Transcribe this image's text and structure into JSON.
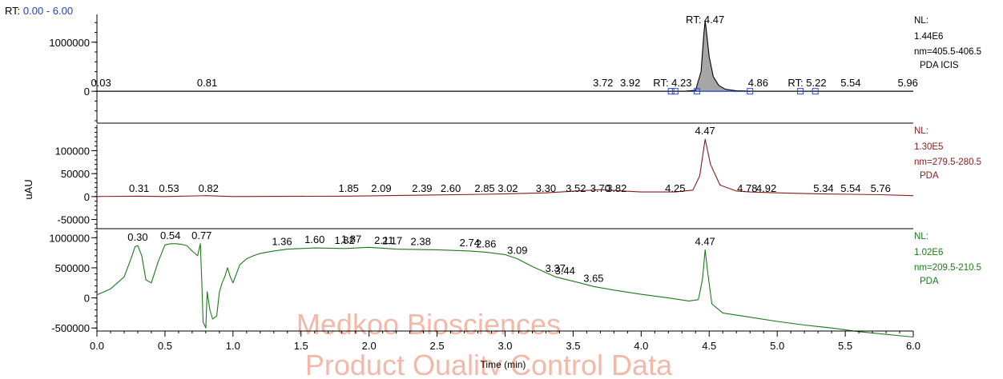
{
  "header": {
    "rt_prefix": "RT:",
    "rt_range": "0.00 - 6.00"
  },
  "watermark": {
    "line1": "Medkoo Biosciences",
    "line2": "Product Quality Control Data",
    "color": "#f4b8a8"
  },
  "chart_data": {
    "type": "line",
    "xlabel": "Time (min)",
    "ylabel": "uAU",
    "xlim": [
      0.0,
      6.0
    ],
    "x_ticks": [
      "0.0",
      "0.5",
      "1.0",
      "1.5",
      "2.0",
      "2.5",
      "3.0",
      "3.5",
      "4.0",
      "4.5",
      "5.0",
      "5.5",
      "6.0"
    ],
    "panels": [
      {
        "color": "#000000",
        "ylim": [
          -650000,
          1600000
        ],
        "y_ticks": [
          {
            "v": 1000000,
            "label": "1000000"
          },
          {
            "v": 0,
            "label": "0"
          }
        ],
        "info": [
          "NL:",
          "1.44E6",
          "nm=405.5-406.5",
          "PDA ICIS"
        ],
        "info_color": "#000000",
        "peak_area_fill": "#a6a6a6",
        "series": [
          {
            "x": [
              0.0,
              4.32,
              4.4,
              4.44,
              4.46,
              4.47,
              4.48,
              4.5,
              4.53,
              4.57,
              4.62,
              4.7,
              4.8,
              6.0
            ],
            "y": [
              0,
              0,
              20000,
              400000,
              1150000,
              1440000,
              1200000,
              700000,
              300000,
              120000,
              40000,
              10000,
              0,
              0
            ]
          }
        ],
        "peak_labels": [
          {
            "x": 0.03,
            "y": 0,
            "text": "0.03"
          },
          {
            "x": 0.81,
            "y": 0,
            "text": "0.81"
          },
          {
            "x": 3.72,
            "y": 0,
            "text": "3.72"
          },
          {
            "x": 3.92,
            "y": 0,
            "text": "3.92"
          },
          {
            "x": 4.23,
            "y": 0,
            "text": "RT: 4.23"
          },
          {
            "x": 4.47,
            "y": 1440000,
            "text": "RT: 4.47"
          },
          {
            "x": 4.86,
            "y": 0,
            "text": "4.86"
          },
          {
            "x": 5.22,
            "y": 0,
            "text": "RT: 5.22"
          },
          {
            "x": 5.54,
            "y": 0,
            "text": "5.54"
          },
          {
            "x": 5.96,
            "y": 0,
            "text": "5.96"
          }
        ],
        "integration_markers": [
          4.22,
          4.25,
          4.41,
          4.8,
          5.17,
          5.28
        ]
      },
      {
        "color": "#8b1a1a",
        "ylim": [
          -70000,
          160000
        ],
        "y_ticks": [
          {
            "v": 100000,
            "label": "100000"
          },
          {
            "v": 50000,
            "label": "50000"
          },
          {
            "v": 0,
            "label": "0"
          },
          {
            "v": -50000,
            "label": "-50000"
          }
        ],
        "info": [
          "NL:",
          "1.30E5",
          "nm=279.5-280.5",
          "PDA"
        ],
        "info_color": "#8b1a1a",
        "series": [
          {
            "x": [
              0.0,
              0.3,
              0.5,
              0.8,
              1.0,
              1.85,
              2.39,
              2.85,
              3.3,
              3.52,
              3.7,
              3.82,
              4.0,
              4.25,
              4.38,
              4.43,
              4.47,
              4.51,
              4.58,
              4.7,
              4.8,
              5.0,
              5.3,
              5.54,
              5.76,
              6.0
            ],
            "y": [
              0,
              1000,
              0,
              2000,
              0,
              1000,
              3000,
              5000,
              8000,
              12000,
              15000,
              13000,
              10000,
              10000,
              14000,
              45000,
              125000,
              70000,
              25000,
              12000,
              10000,
              8000,
              6000,
              5000,
              4000,
              2000
            ]
          }
        ],
        "peak_labels": [
          {
            "x": 0.31,
            "y": 0,
            "text": "0.31"
          },
          {
            "x": 0.53,
            "y": 0,
            "text": "0.53"
          },
          {
            "x": 0.82,
            "y": 0,
            "text": "0.82"
          },
          {
            "x": 1.85,
            "y": 0,
            "text": "1.85"
          },
          {
            "x": 2.09,
            "y": 0,
            "text": "2.09"
          },
          {
            "x": 2.39,
            "y": 0,
            "text": "2.39"
          },
          {
            "x": 2.6,
            "y": 0,
            "text": "2.60"
          },
          {
            "x": 2.85,
            "y": 0,
            "text": "2.85"
          },
          {
            "x": 3.02,
            "y": 0,
            "text": "3.02"
          },
          {
            "x": 3.3,
            "y": 0,
            "text": "3.30"
          },
          {
            "x": 3.52,
            "y": 0,
            "text": "3.52"
          },
          {
            "x": 3.7,
            "y": 0,
            "text": "3.70"
          },
          {
            "x": 3.82,
            "y": 0,
            "text": "3.82"
          },
          {
            "x": 4.25,
            "y": 0,
            "text": "4.25"
          },
          {
            "x": 4.47,
            "y": 125000,
            "text": "4.47"
          },
          {
            "x": 4.78,
            "y": 0,
            "text": "4.78"
          },
          {
            "x": 4.92,
            "y": 0,
            "text": "4.92"
          },
          {
            "x": 5.34,
            "y": 0,
            "text": "5.34"
          },
          {
            "x": 5.54,
            "y": 0,
            "text": "5.54"
          },
          {
            "x": 5.76,
            "y": 0,
            "text": "5.76"
          }
        ]
      },
      {
        "color": "#1a7a1a",
        "ylim": [
          -550000,
          1150000
        ],
        "y_ticks": [
          {
            "v": 1000000,
            "label": "1000000"
          },
          {
            "v": 500000,
            "label": "500000"
          },
          {
            "v": 0,
            "label": "0"
          },
          {
            "v": -500000,
            "label": "-500000"
          }
        ],
        "info": [
          "NL:",
          "1.02E6",
          "nm=209.5-210.5",
          "PDA"
        ],
        "info_color": "#1a7a1a",
        "series": [
          {
            "x": [
              0.0,
              0.05,
              0.1,
              0.15,
              0.2,
              0.25,
              0.28,
              0.3,
              0.33,
              0.36,
              0.4,
              0.45,
              0.5,
              0.52,
              0.54,
              0.58,
              0.62,
              0.66,
              0.7,
              0.74,
              0.76,
              0.77,
              0.78,
              0.8,
              0.81,
              0.83,
              0.85,
              0.88,
              0.9,
              0.92,
              0.94,
              0.96,
              0.98,
              1.0,
              1.05,
              1.1,
              1.15,
              1.2,
              1.3,
              1.4,
              1.6,
              1.82,
              2.0,
              2.2,
              2.5,
              2.74,
              2.86,
              3.0,
              3.09,
              3.2,
              3.37,
              3.44,
              3.55,
              3.65,
              3.8,
              4.0,
              4.2,
              4.35,
              4.42,
              4.45,
              4.47,
              4.49,
              4.52,
              4.6,
              4.8,
              5.0,
              5.2,
              5.4,
              5.6,
              6.0
            ],
            "y": [
              50000,
              100000,
              150000,
              250000,
              350000,
              650000,
              850000,
              870000,
              700000,
              300000,
              250000,
              600000,
              880000,
              890000,
              900000,
              900000,
              890000,
              870000,
              780000,
              700000,
              900000,
              300000,
              -400000,
              -500000,
              100000,
              -200000,
              -350000,
              -300000,
              100000,
              250000,
              350000,
              500000,
              350000,
              250000,
              550000,
              650000,
              700000,
              740000,
              780000,
              810000,
              830000,
              820000,
              840000,
              810000,
              800000,
              780000,
              760000,
              720000,
              650000,
              520000,
              350000,
              310000,
              250000,
              190000,
              130000,
              60000,
              0,
              -50000,
              -30000,
              300000,
              800000,
              400000,
              -100000,
              -250000,
              -320000,
              -390000,
              -450000,
              -500000,
              -560000,
              -650000
            ]
          }
        ],
        "peak_labels": [
          {
            "x": 0.3,
            "y": 870000,
            "text": "0.30"
          },
          {
            "x": 0.54,
            "y": 900000,
            "text": "0.54"
          },
          {
            "x": 0.77,
            "y": 900000,
            "text": "0.77"
          },
          {
            "x": 1.36,
            "y": 800000,
            "text": "1.36"
          },
          {
            "x": 1.6,
            "y": 830000,
            "text": "1.60"
          },
          {
            "x": 1.82,
            "y": 820000,
            "text": "1.82"
          },
          {
            "x": 1.87,
            "y": 840000,
            "text": "1.87"
          },
          {
            "x": 2.11,
            "y": 820000,
            "text": "2.11"
          },
          {
            "x": 2.17,
            "y": 810000,
            "text": "2.17"
          },
          {
            "x": 2.38,
            "y": 800000,
            "text": "2.38"
          },
          {
            "x": 2.74,
            "y": 780000,
            "text": "2.74"
          },
          {
            "x": 2.86,
            "y": 760000,
            "text": "2.86"
          },
          {
            "x": 3.09,
            "y": 650000,
            "text": "3.09"
          },
          {
            "x": 3.37,
            "y": 350000,
            "text": "3.37"
          },
          {
            "x": 3.44,
            "y": 310000,
            "text": "3.44"
          },
          {
            "x": 3.65,
            "y": 190000,
            "text": "3.65"
          },
          {
            "x": 4.47,
            "y": 800000,
            "text": "4.47"
          }
        ]
      }
    ]
  }
}
